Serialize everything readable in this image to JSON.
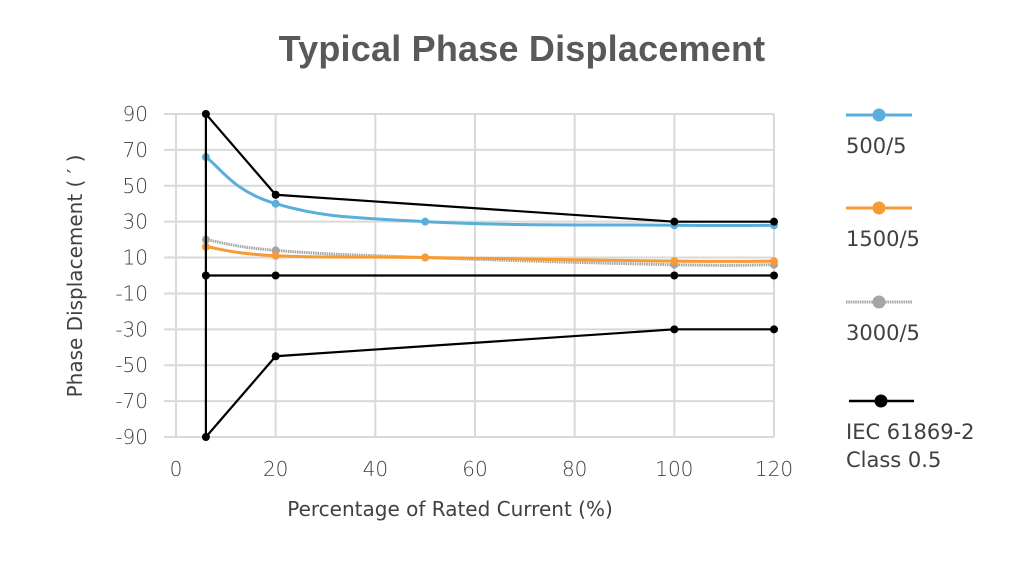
{
  "title": "Typical Phase Displacement",
  "chart_data": {
    "type": "line",
    "title": "Typical Phase Displacement",
    "xlabel": "Percentage of Rated Current (%)",
    "ylabel": "Phase Displacement ( ′ )",
    "xlim": [
      0,
      120
    ],
    "ylim": [
      -90,
      90
    ],
    "xticks": [
      0,
      20,
      40,
      60,
      80,
      100,
      120
    ],
    "yticks": [
      90,
      70,
      50,
      30,
      10,
      -10,
      -30,
      -50,
      -70,
      -90
    ],
    "grid": true,
    "legend_position": "right",
    "series": [
      {
        "name": "500/5",
        "color": "#5aaedc",
        "smooth": true,
        "x": [
          6,
          20,
          50,
          100,
          120
        ],
        "y": [
          66,
          40,
          30,
          28,
          28
        ]
      },
      {
        "name": "1500/5",
        "color": "#f79b34",
        "smooth": true,
        "x": [
          6,
          20,
          50,
          100,
          120
        ],
        "y": [
          16,
          11,
          10,
          8,
          8
        ]
      },
      {
        "name": "3000/5",
        "color": "#a5a5a5",
        "smooth": true,
        "x": [
          6,
          20,
          50,
          100,
          120
        ],
        "y": [
          20,
          14,
          10,
          6,
          6
        ]
      },
      {
        "name": "IEC 61869-2 Class 0.5",
        "color": "#000000",
        "smooth": false,
        "segments": [
          {
            "x": [
              6,
              20,
              100,
              120
            ],
            "y": [
              90,
              45,
              30,
              30
            ]
          },
          {
            "x": [
              6,
              20,
              100,
              120
            ],
            "y": [
              0,
              0,
              0,
              0
            ]
          },
          {
            "x": [
              6,
              20,
              100,
              120
            ],
            "y": [
              -90,
              -45,
              -30,
              -30
            ]
          },
          {
            "x": [
              6,
              6
            ],
            "y": [
              90,
              -90
            ]
          }
        ]
      }
    ]
  },
  "legend": [
    {
      "label": "500/5",
      "color": "#5aaedc"
    },
    {
      "label": "1500/5",
      "color": "#f79b34"
    },
    {
      "label": "3000/5",
      "color": "#a5a5a5"
    },
    {
      "label": "IEC 61869-2\nClass 0.5",
      "color": "#000000"
    }
  ]
}
